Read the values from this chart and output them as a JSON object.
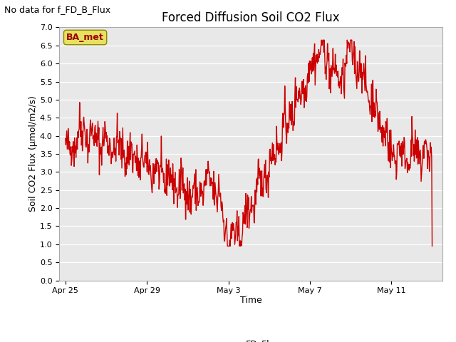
{
  "title": "Forced Diffusion Soil CO2 Flux",
  "xlabel": "Time",
  "ylabel": "Soil CO2 Flux (μmol/m2/s)",
  "ylim": [
    0.0,
    7.0
  ],
  "yticks": [
    0.0,
    0.5,
    1.0,
    1.5,
    2.0,
    2.5,
    3.0,
    3.5,
    4.0,
    4.5,
    5.0,
    5.5,
    6.0,
    6.5,
    7.0
  ],
  "no_data_text": "No data for f_FD_B_Flux",
  "legend_label": "FD_Flux",
  "line_color": "#cc0000",
  "line_width": 1.0,
  "bg_color": "#e8e8e8",
  "box_facecolor": "#e8e060",
  "box_label": "BA_met",
  "box_edgecolor": "#888800",
  "title_fontsize": 12,
  "axis_fontsize": 9,
  "tick_fontsize": 8,
  "no_data_fontsize": 9,
  "num_points": 800,
  "seed": 42
}
